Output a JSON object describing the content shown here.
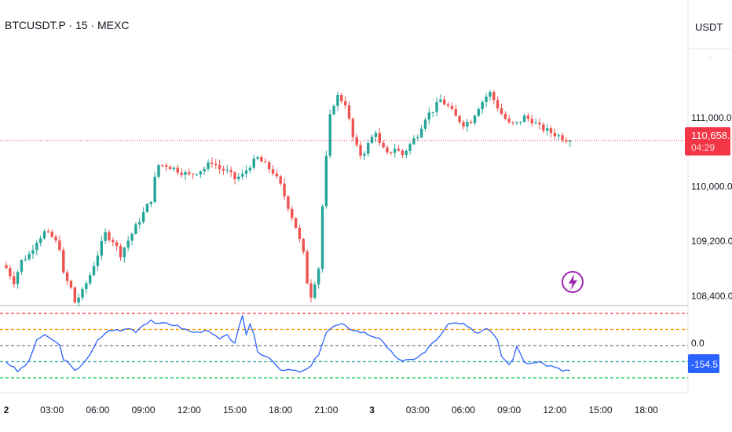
{
  "header": {
    "symbol_title": "BTCUSDT.P · 15 · MEXC",
    "currency": "USDT"
  },
  "price_axis": {
    "last_price": "110,658.5",
    "countdown": "04:29"
  },
  "indicator": {
    "current_value": "-154.5",
    "zero_label": "0.0"
  },
  "colors": {
    "up": "#26a69a",
    "down": "#ef5350",
    "price_line": "#f23645",
    "cci_line": "#2962ff",
    "badge_indicator": "#2962ff",
    "flash_icon": "#9c27b0"
  },
  "chart_data": [
    {
      "type": "candlestick",
      "x_unit": "15-minute bars",
      "price_ylim": [
        108300,
        111500
      ],
      "y_ticks": [
        {
          "value": 111000,
          "label": "111,000.0"
        },
        {
          "value": 110000,
          "label": "110,000.0"
        },
        {
          "value": 109200,
          "label": "109,200.0"
        },
        {
          "value": 108400,
          "label": "108,400.0"
        }
      ],
      "x_ticks": [
        {
          "label": "2",
          "bold": true,
          "bar": 0
        },
        {
          "label": "03:00",
          "bar": 12
        },
        {
          "label": "06:00",
          "bar": 24
        },
        {
          "label": "09:00",
          "bar": 36
        },
        {
          "label": "12:00",
          "bar": 48
        },
        {
          "label": "15:00",
          "bar": 60
        },
        {
          "label": "18:00",
          "bar": 72
        },
        {
          "label": "21:00",
          "bar": 84
        },
        {
          "label": "3",
          "bold": true,
          "bar": 96
        },
        {
          "label": "03:00",
          "bar": 108
        },
        {
          "label": "06:00",
          "bar": 120
        },
        {
          "label": "09:00",
          "bar": 132
        },
        {
          "label": "12:00",
          "bar": 144
        },
        {
          "label": "15:00",
          "bar": 156
        },
        {
          "label": "18:00",
          "bar": 168
        }
      ],
      "close_keypoints": [
        [
          0,
          108800
        ],
        [
          2,
          108600
        ],
        [
          4,
          108900
        ],
        [
          6,
          109000
        ],
        [
          8,
          109200
        ],
        [
          10,
          109320
        ],
        [
          12,
          109250
        ],
        [
          14,
          109100
        ],
        [
          15,
          108700
        ],
        [
          17,
          108500
        ],
        [
          18,
          108300
        ],
        [
          20,
          108450
        ],
        [
          22,
          108700
        ],
        [
          24,
          109000
        ],
        [
          26,
          109300
        ],
        [
          28,
          109200
        ],
        [
          30,
          109000
        ],
        [
          32,
          109200
        ],
        [
          34,
          109400
        ],
        [
          36,
          109600
        ],
        [
          38,
          109800
        ],
        [
          39,
          110100
        ],
        [
          40,
          110300
        ],
        [
          42,
          110300
        ],
        [
          44,
          110250
        ],
        [
          46,
          110200
        ],
        [
          48,
          110150
        ],
        [
          50,
          110200
        ],
        [
          52,
          110250
        ],
        [
          54,
          110350
        ],
        [
          56,
          110250
        ],
        [
          58,
          110200
        ],
        [
          60,
          110100
        ],
        [
          62,
          110150
        ],
        [
          64,
          110300
        ],
        [
          66,
          110400
        ],
        [
          68,
          110300
        ],
        [
          70,
          110200
        ],
        [
          72,
          110000
        ],
        [
          74,
          109700
        ],
        [
          76,
          109400
        ],
        [
          78,
          109000
        ],
        [
          79,
          108600
        ],
        [
          80,
          108400
        ],
        [
          82,
          108800
        ],
        [
          83,
          109700
        ],
        [
          84,
          110400
        ],
        [
          85,
          111000
        ],
        [
          86,
          111200
        ],
        [
          87,
          111300
        ],
        [
          88,
          111250
        ],
        [
          89,
          111200
        ],
        [
          90,
          110950
        ],
        [
          91,
          110700
        ],
        [
          92,
          110550
        ],
        [
          93,
          110450
        ],
        [
          94,
          110500
        ],
        [
          96,
          110700
        ],
        [
          97,
          110800
        ],
        [
          98,
          110600
        ],
        [
          100,
          110450
        ],
        [
          102,
          110550
        ],
        [
          104,
          110450
        ],
        [
          106,
          110600
        ],
        [
          108,
          110750
        ],
        [
          110,
          111000
        ],
        [
          112,
          111100
        ],
        [
          114,
          111250
        ],
        [
          116,
          111150
        ],
        [
          118,
          111000
        ],
        [
          120,
          110900
        ],
        [
          122,
          110950
        ],
        [
          124,
          111150
        ],
        [
          126,
          111300
        ],
        [
          127,
          111350
        ],
        [
          128,
          111250
        ],
        [
          130,
          111050
        ],
        [
          132,
          110900
        ],
        [
          134,
          110900
        ],
        [
          136,
          111000
        ],
        [
          138,
          110950
        ],
        [
          140,
          110850
        ],
        [
          142,
          110800
        ],
        [
          144,
          110750
        ],
        [
          146,
          110700
        ],
        [
          148,
          110658.5
        ]
      ],
      "last_price": 110658.5
    },
    {
      "type": "line",
      "name": "-154.5",
      "y_range": [
        -350,
        250
      ],
      "levels": [
        {
          "value": 200,
          "color": "#f23645"
        },
        {
          "value": 100,
          "color": "#ff9800"
        },
        {
          "value": 0,
          "color": "#787b86"
        },
        {
          "value": -100,
          "color": "#26a69a"
        },
        {
          "value": -200,
          "color": "#00c853"
        }
      ],
      "keypoints": [
        [
          0,
          -100
        ],
        [
          3,
          -160
        ],
        [
          6,
          -100
        ],
        [
          8,
          40
        ],
        [
          10,
          60
        ],
        [
          12,
          40
        ],
        [
          14,
          0
        ],
        [
          15,
          -80
        ],
        [
          17,
          -130
        ],
        [
          18,
          -160
        ],
        [
          20,
          -110
        ],
        [
          22,
          -60
        ],
        [
          24,
          30
        ],
        [
          26,
          80
        ],
        [
          28,
          100
        ],
        [
          30,
          90
        ],
        [
          32,
          110
        ],
        [
          34,
          90
        ],
        [
          36,
          130
        ],
        [
          38,
          160
        ],
        [
          40,
          130
        ],
        [
          42,
          140
        ],
        [
          44,
          130
        ],
        [
          46,
          110
        ],
        [
          48,
          90
        ],
        [
          50,
          80
        ],
        [
          52,
          100
        ],
        [
          54,
          70
        ],
        [
          56,
          40
        ],
        [
          58,
          60
        ],
        [
          60,
          20
        ],
        [
          61,
          100
        ],
        [
          62,
          180
        ],
        [
          63,
          60
        ],
        [
          64,
          140
        ],
        [
          65,
          70
        ],
        [
          66,
          -40
        ],
        [
          68,
          -60
        ],
        [
          70,
          -90
        ],
        [
          72,
          -160
        ],
        [
          74,
          -150
        ],
        [
          76,
          -160
        ],
        [
          78,
          -160
        ],
        [
          80,
          -130
        ],
        [
          82,
          -50
        ],
        [
          84,
          80
        ],
        [
          86,
          120
        ],
        [
          88,
          130
        ],
        [
          90,
          110
        ],
        [
          92,
          90
        ],
        [
          94,
          80
        ],
        [
          96,
          60
        ],
        [
          98,
          50
        ],
        [
          100,
          -20
        ],
        [
          102,
          -60
        ],
        [
          104,
          -100
        ],
        [
          106,
          -90
        ],
        [
          108,
          -70
        ],
        [
          110,
          -40
        ],
        [
          112,
          20
        ],
        [
          114,
          60
        ],
        [
          116,
          130
        ],
        [
          118,
          140
        ],
        [
          120,
          130
        ],
        [
          122,
          100
        ],
        [
          124,
          80
        ],
        [
          126,
          110
        ],
        [
          127,
          100
        ],
        [
          129,
          40
        ],
        [
          130,
          -60
        ],
        [
          132,
          -110
        ],
        [
          133,
          -80
        ],
        [
          134,
          0
        ],
        [
          135,
          -50
        ],
        [
          136,
          -100
        ],
        [
          138,
          -110
        ],
        [
          140,
          -90
        ],
        [
          142,
          -120
        ],
        [
          144,
          -130
        ],
        [
          146,
          -150
        ],
        [
          148,
          -154.5
        ]
      ],
      "current_value": -154.5
    }
  ]
}
